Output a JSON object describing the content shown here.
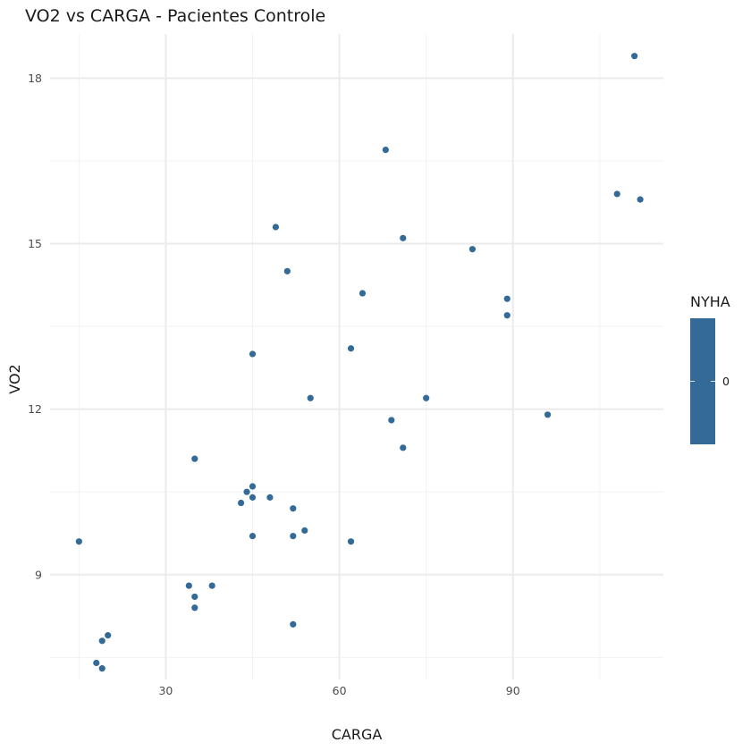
{
  "chart_data": {
    "type": "scatter",
    "title": "VO2 vs CARGA - Pacientes Controle",
    "xlabel": "CARGA",
    "ylabel": "VO2",
    "xlim": [
      10,
      116
    ],
    "ylim": [
      7.1,
      18.8
    ],
    "xticks": [
      30,
      60,
      90
    ],
    "yticks": [
      9,
      12,
      15,
      18
    ],
    "x_tick_labels": [
      "30",
      "60",
      "90"
    ],
    "y_tick_labels": [
      "9",
      "12",
      "15",
      "18"
    ],
    "grid": true,
    "point_color": "#336A98",
    "legend": {
      "title": "NYHA",
      "labels": [
        "0"
      ],
      "position": "right",
      "color": "#336A98"
    },
    "points": [
      {
        "x": 111,
        "y": 18.4
      },
      {
        "x": 68,
        "y": 16.7
      },
      {
        "x": 108,
        "y": 15.9
      },
      {
        "x": 112,
        "y": 15.8
      },
      {
        "x": 49,
        "y": 15.3
      },
      {
        "x": 71,
        "y": 15.1
      },
      {
        "x": 83,
        "y": 14.9
      },
      {
        "x": 51,
        "y": 14.5
      },
      {
        "x": 64,
        "y": 14.1
      },
      {
        "x": 89,
        "y": 14.0
      },
      {
        "x": 89,
        "y": 13.7
      },
      {
        "x": 62,
        "y": 13.1
      },
      {
        "x": 45,
        "y": 13.0
      },
      {
        "x": 55,
        "y": 12.2
      },
      {
        "x": 75,
        "y": 12.2
      },
      {
        "x": 96,
        "y": 11.9
      },
      {
        "x": 69,
        "y": 11.8
      },
      {
        "x": 71,
        "y": 11.3
      },
      {
        "x": 35,
        "y": 11.1
      },
      {
        "x": 45,
        "y": 10.6
      },
      {
        "x": 44,
        "y": 10.5
      },
      {
        "x": 45,
        "y": 10.4
      },
      {
        "x": 48,
        "y": 10.4
      },
      {
        "x": 43,
        "y": 10.3
      },
      {
        "x": 52,
        "y": 10.2
      },
      {
        "x": 54,
        "y": 9.8
      },
      {
        "x": 45,
        "y": 9.7
      },
      {
        "x": 52,
        "y": 9.7
      },
      {
        "x": 15,
        "y": 9.6
      },
      {
        "x": 62,
        "y": 9.6
      },
      {
        "x": 34,
        "y": 8.8
      },
      {
        "x": 38,
        "y": 8.8
      },
      {
        "x": 35,
        "y": 8.6
      },
      {
        "x": 35,
        "y": 8.4
      },
      {
        "x": 52,
        "y": 8.1
      },
      {
        "x": 20,
        "y": 7.9
      },
      {
        "x": 19,
        "y": 7.8
      },
      {
        "x": 18,
        "y": 7.4
      },
      {
        "x": 19,
        "y": 7.3
      }
    ]
  }
}
